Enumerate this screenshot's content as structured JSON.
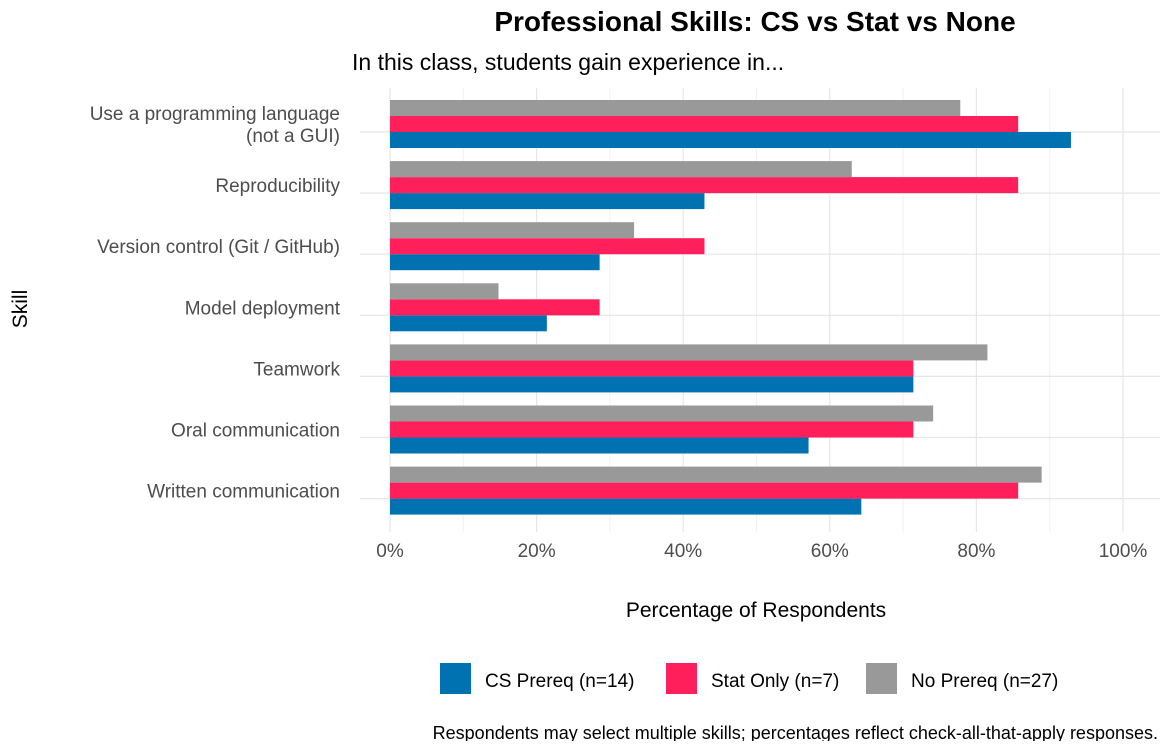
{
  "chart_data": {
    "type": "bar",
    "orientation": "horizontal",
    "title": "Professional Skills: CS vs Stat vs None",
    "subtitle": "In this class, students gain experience in...",
    "xlabel": "Percentage of Respondents",
    "ylabel": "Skill",
    "caption": "Respondents may select multiple skills; percentages reflect check-all-that-apply responses.",
    "xlim": [
      0,
      100
    ],
    "xticks": [
      0,
      20,
      40,
      60,
      80,
      100
    ],
    "xtick_labels": [
      "0%",
      "20%",
      "40%",
      "60%",
      "80%",
      "100%"
    ],
    "grid": true,
    "legend_position": "bottom",
    "categories": [
      [
        "Use a programming language",
        "(not a GUI)"
      ],
      [
        "Reproducibility"
      ],
      [
        "Version control (Git / GitHub)"
      ],
      [
        "Model deployment"
      ],
      [
        "Teamwork"
      ],
      [
        "Oral communication"
      ],
      [
        "Written communication"
      ]
    ],
    "series": [
      {
        "name": "CS Prereq (n=14)",
        "color": "#0072B2",
        "values": [
          92.9,
          42.9,
          28.6,
          21.4,
          71.4,
          57.1,
          64.3
        ]
      },
      {
        "name": "Stat Only (n=7)",
        "color": "#FF1F5B",
        "values": [
          85.7,
          85.7,
          42.9,
          28.6,
          71.4,
          71.4,
          85.7
        ]
      },
      {
        "name": "No Prereq (n=27)",
        "color": "#999999",
        "values": [
          77.8,
          63.0,
          33.3,
          14.8,
          81.5,
          74.1,
          88.9
        ]
      }
    ]
  }
}
